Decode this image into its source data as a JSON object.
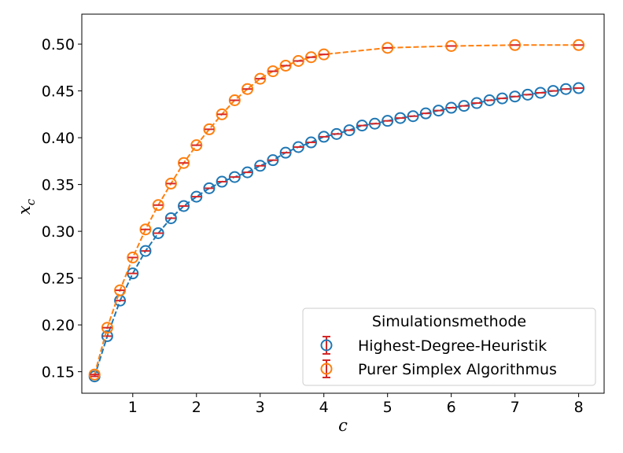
{
  "chart_data": {
    "type": "scatter",
    "xlabel": "c",
    "ylabel_main": "x",
    "ylabel_sub": "c",
    "xlim": [
      0.2,
      8.4
    ],
    "ylim": [
      0.127,
      0.532
    ],
    "xticks": [
      1,
      2,
      3,
      4,
      5,
      6,
      7,
      8
    ],
    "xtick_labels": [
      "1",
      "2",
      "3",
      "4",
      "5",
      "6",
      "7",
      "8"
    ],
    "yticks": [
      0.15,
      0.2,
      0.25,
      0.3,
      0.35,
      0.4,
      0.45,
      0.5
    ],
    "ytick_labels": [
      "0.15",
      "0.20",
      "0.25",
      "0.30",
      "0.35",
      "0.40",
      "0.45",
      "0.50"
    ],
    "grid": false,
    "legend": {
      "title": "Simulationsmethode",
      "placement": "lower-right"
    },
    "errorbar_color": "#d62728",
    "series": [
      {
        "name": "Highest-Degree-Heuristik",
        "color": "#1f77b4",
        "x": [
          0.4,
          0.6,
          0.8,
          1.0,
          1.2,
          1.4,
          1.6,
          1.8,
          2.0,
          2.2,
          2.4,
          2.6,
          2.8,
          3.0,
          3.2,
          3.4,
          3.6,
          3.8,
          4.0,
          4.2,
          4.4,
          4.6,
          4.8,
          5.0,
          5.2,
          5.4,
          5.6,
          5.8,
          6.0,
          6.2,
          6.4,
          6.6,
          6.8,
          7.0,
          7.2,
          7.4,
          7.6,
          7.8,
          8.0
        ],
        "y": [
          0.145,
          0.188,
          0.226,
          0.255,
          0.279,
          0.298,
          0.314,
          0.327,
          0.337,
          0.346,
          0.353,
          0.358,
          0.363,
          0.37,
          0.376,
          0.384,
          0.39,
          0.395,
          0.401,
          0.404,
          0.408,
          0.413,
          0.415,
          0.418,
          0.421,
          0.423,
          0.426,
          0.429,
          0.432,
          0.434,
          0.437,
          0.44,
          0.442,
          0.444,
          0.446,
          0.448,
          0.45,
          0.452,
          0.453
        ]
      },
      {
        "name": "Purer Simplex Algorithmus",
        "color": "#ff7f0e",
        "x": [
          0.4,
          0.6,
          0.8,
          1.0,
          1.2,
          1.4,
          1.6,
          1.8,
          2.0,
          2.2,
          2.4,
          2.6,
          2.8,
          3.0,
          3.2,
          3.4,
          3.6,
          3.8,
          4.0,
          5.0,
          6.0,
          7.0,
          8.0
        ],
        "y": [
          0.147,
          0.197,
          0.237,
          0.272,
          0.302,
          0.328,
          0.351,
          0.373,
          0.392,
          0.409,
          0.425,
          0.44,
          0.452,
          0.463,
          0.471,
          0.477,
          0.482,
          0.486,
          0.489,
          0.496,
          0.498,
          0.499,
          0.499
        ]
      }
    ]
  }
}
